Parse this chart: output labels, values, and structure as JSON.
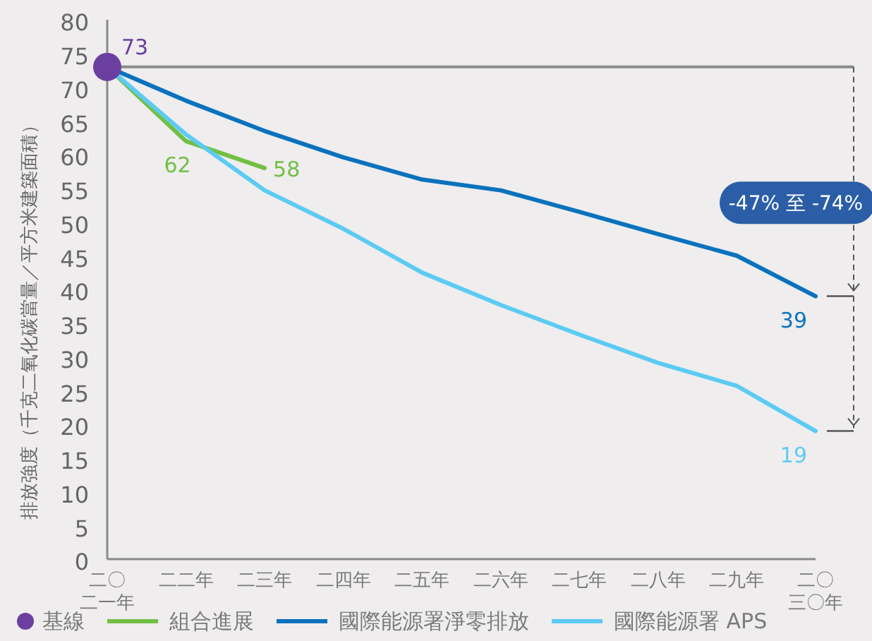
{
  "chart_data": {
    "type": "line",
    "ylabel": "排放強度（千克二氧化碳當量／平方米建築面積）",
    "categories": [
      "二〇二一年",
      "二二年",
      "二三年",
      "二四年",
      "二五年",
      "二六年",
      "二七年",
      "二八年",
      "二九年",
      "二〇三〇年"
    ],
    "ylim": [
      0,
      80
    ],
    "yticks": [
      0,
      5,
      10,
      15,
      20,
      25,
      30,
      35,
      40,
      45,
      50,
      55,
      60,
      65,
      70,
      75,
      80
    ],
    "series": [
      {
        "name": "基線",
        "type": "scatter",
        "marker": "circle",
        "color": "#6b3fa0",
        "values": [
          73,
          null,
          null,
          null,
          null,
          null,
          null,
          null,
          null,
          null
        ],
        "value_labels": [
          "73",
          null,
          null,
          null,
          null,
          null,
          null,
          null,
          null,
          null
        ]
      },
      {
        "name": "組合進展",
        "color": "#72bf44",
        "values": [
          73,
          62,
          58,
          null,
          null,
          null,
          null,
          null,
          null,
          null
        ],
        "value_labels": [
          null,
          "62",
          "58",
          null,
          null,
          null,
          null,
          null,
          null,
          null
        ]
      },
      {
        "name": "國際能源署淨零排放",
        "color": "#0a72bd",
        "values": [
          73,
          68,
          63.5,
          59.6,
          56.3,
          54.7,
          51.5,
          48.2,
          45,
          39
        ],
        "value_labels": [
          null,
          null,
          null,
          null,
          null,
          null,
          null,
          null,
          null,
          "39"
        ]
      },
      {
        "name": "國際能源署 APS",
        "color": "#5ccbf3",
        "values": [
          73,
          63,
          54.7,
          49,
          42.5,
          37.7,
          33.3,
          29.1,
          25.7,
          19
        ],
        "value_labels": [
          null,
          null,
          null,
          null,
          null,
          null,
          null,
          null,
          null,
          "19"
        ]
      }
    ],
    "ref_lines": [
      {
        "axis": "y",
        "value": 73,
        "color": "#8a8a8a"
      }
    ],
    "annotations": [
      "-47% 至 -74%"
    ],
    "grid": false,
    "legend": "bottom"
  }
}
